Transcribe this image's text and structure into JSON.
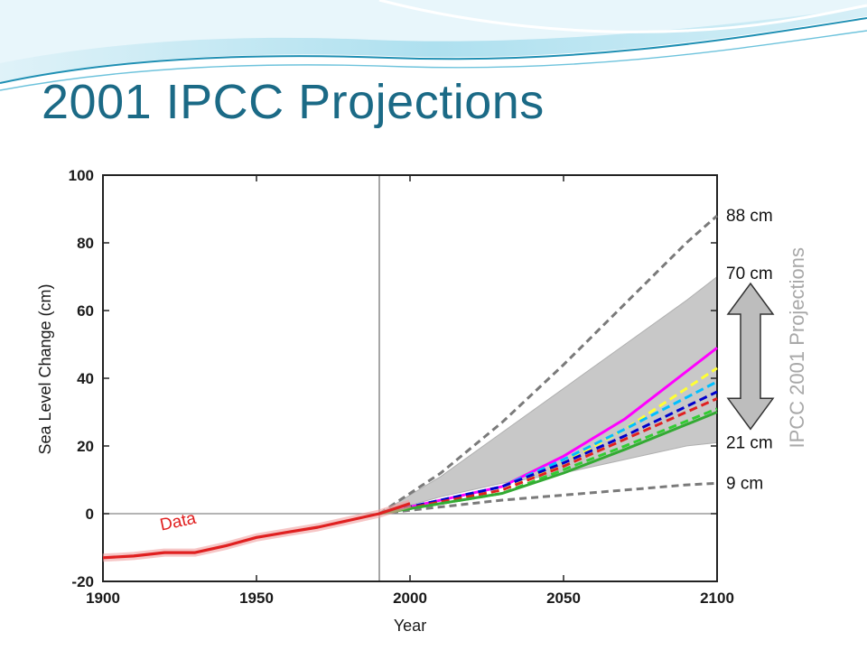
{
  "slide": {
    "title": "2001 IPCC Projections"
  },
  "colors": {
    "title": "#1b6a86",
    "header_wave_dark": "#1e8fb3",
    "header_wave_light": "#bfe6f2",
    "data_line": "#e02020",
    "envelope": "#c8c8c8",
    "envelope_outer_dashed": "#7a7a7a",
    "divider": "#888888"
  },
  "chart_data": {
    "type": "line",
    "xlabel": "Year",
    "ylabel": "Sea Level Change (cm)",
    "xlim": [
      1900,
      2100
    ],
    "ylim": [
      -20,
      100
    ],
    "x_ticks": [
      "1900",
      "1950",
      "2000",
      "2050",
      "2100"
    ],
    "y_ticks": [
      "-20",
      "0",
      "20",
      "40",
      "60",
      "80",
      "100"
    ],
    "reference_year": 1990,
    "grid": false,
    "observed": {
      "name": "Data",
      "x": [
        1900,
        1910,
        1920,
        1930,
        1940,
        1950,
        1960,
        1970,
        1980,
        1990,
        2000
      ],
      "y": [
        -13,
        -12.5,
        -11.5,
        -11.5,
        -9.5,
        -7,
        -5.5,
        -4,
        -2,
        0,
        3
      ]
    },
    "envelope": {
      "x": [
        1990,
        2010,
        2030,
        2050,
        2070,
        2090,
        2100
      ],
      "upper": [
        0,
        11,
        24,
        37,
        50,
        63,
        70
      ],
      "lower": [
        0,
        5,
        9,
        12,
        16,
        20,
        21
      ]
    },
    "outer_bounds": [
      {
        "label": "88 cm",
        "x": [
          1990,
          2010,
          2030,
          2050,
          2070,
          2090,
          2100
        ],
        "y": [
          0,
          12,
          27,
          44,
          62,
          80,
          88
        ]
      },
      {
        "label": "9 cm",
        "x": [
          1990,
          2010,
          2030,
          2050,
          2070,
          2090,
          2100
        ],
        "y": [
          0,
          2,
          4,
          5.5,
          7,
          8.5,
          9
        ]
      }
    ],
    "range_labels": [
      "70 cm",
      "21 cm"
    ],
    "scenarios": [
      {
        "color": "#ff00ff",
        "dashed": false,
        "x": [
          1990,
          2030,
          2050,
          2070,
          2100
        ],
        "y": [
          0,
          8,
          17,
          28,
          49
        ]
      },
      {
        "color": "#ffff33",
        "dashed": true,
        "x": [
          1990,
          2030,
          2050,
          2070,
          2100
        ],
        "y": [
          0,
          7,
          15,
          25,
          43
        ]
      },
      {
        "color": "#00bfff",
        "dashed": true,
        "x": [
          1990,
          2030,
          2050,
          2070,
          2100
        ],
        "y": [
          0,
          8,
          16,
          25,
          39
        ]
      },
      {
        "color": "#0000cc",
        "dashed": true,
        "x": [
          1990,
          2030,
          2050,
          2070,
          2100
        ],
        "y": [
          0,
          8,
          15,
          23,
          36
        ]
      },
      {
        "color": "#e02020",
        "dashed": true,
        "x": [
          1990,
          2030,
          2050,
          2070,
          2100
        ],
        "y": [
          0,
          7,
          14,
          22,
          34
        ]
      },
      {
        "color": "#33cc33",
        "dashed": true,
        "x": [
          1990,
          2030,
          2050,
          2070,
          2100
        ],
        "y": [
          0,
          6,
          13,
          20,
          31
        ]
      },
      {
        "color": "#33aa33",
        "dashed": false,
        "x": [
          1990,
          2030,
          2050,
          2070,
          2100
        ],
        "y": [
          0,
          6,
          12,
          19,
          30
        ]
      }
    ],
    "side_label": "IPCC 2001 Projections"
  }
}
